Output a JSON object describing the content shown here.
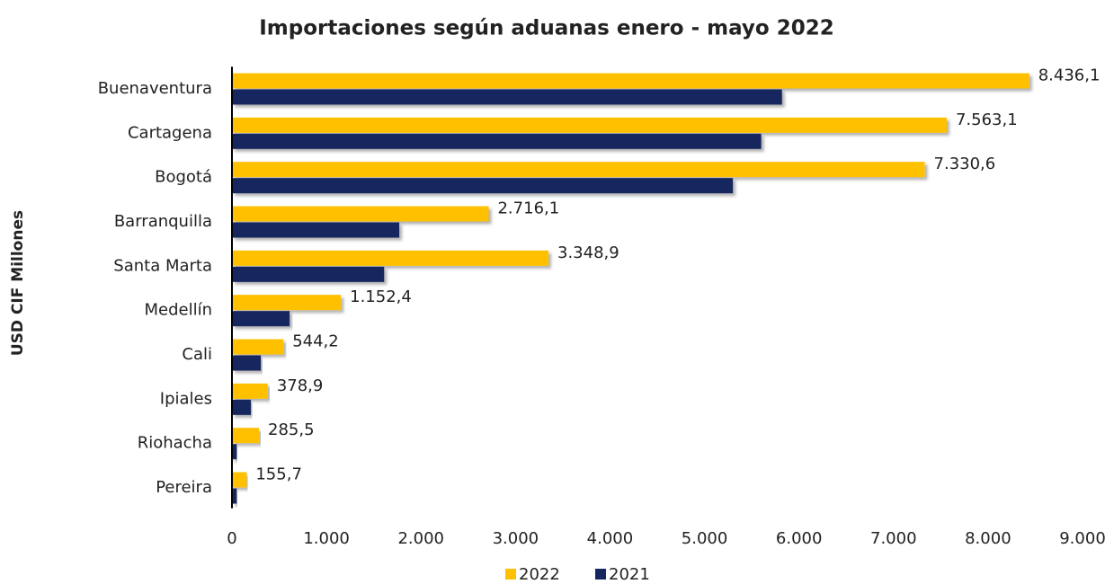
{
  "chart_data": {
    "type": "hbar",
    "title": "Importaciones según aduanas enero - mayo 2022",
    "ylabel": "USD CIF Millones",
    "categories": [
      "Buenaventura",
      "Cartagena",
      "Bogotá",
      "Barranquilla",
      "Santa Marta",
      "Medellín",
      "Cali",
      "Ipiales",
      "Riohacha",
      "Pereira"
    ],
    "series": [
      {
        "name": "2022",
        "color": "#ffc000",
        "values": [
          8436.1,
          7563.1,
          7330.6,
          2716.1,
          3348.9,
          1152.4,
          544.2,
          378.9,
          285.5,
          155.7
        ],
        "value_labels": [
          "8.436,1",
          "7.563,1",
          "7.330,6",
          "2.716,1",
          "3.348,9",
          "1.152,4",
          "544,2",
          "378,9",
          "285,5",
          "155,7"
        ]
      },
      {
        "name": "2021",
        "color": "#14275e",
        "values": [
          5820,
          5600,
          5300,
          1770,
          1610,
          610,
          305,
          200,
          50,
          50
        ]
      }
    ],
    "xlim": [
      0,
      9000
    ],
    "xticks": [
      0,
      {
        "value": 1000,
        "label": "1.000"
      },
      {
        "value": 2000,
        "label": "2.000"
      },
      {
        "value": 3000,
        "label": "3.000"
      },
      {
        "value": 4000,
        "label": "4.000"
      },
      {
        "value": 5000,
        "label": "5.000"
      },
      {
        "value": 6000,
        "label": "6.000"
      },
      {
        "value": 7000,
        "label": "7.000"
      },
      {
        "value": 8000,
        "label": "8.000"
      },
      {
        "value": 9000,
        "label": "9.000"
      }
    ],
    "legend": "bottom"
  }
}
